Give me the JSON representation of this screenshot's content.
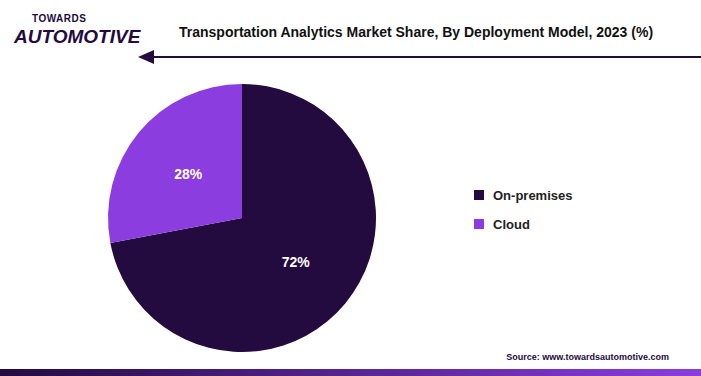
{
  "logo": {
    "top": "TOWARDS",
    "bottom": "AUTOMOTIVE"
  },
  "source": "Source: www.towardsautomotive.com",
  "chart_data": {
    "type": "pie",
    "title": "Transportation Analytics Market Share, By Deployment Model, 2023 (%)",
    "categories": [
      "On-premises",
      "Cloud"
    ],
    "values": [
      72,
      28
    ],
    "value_labels": [
      "72%",
      "28%"
    ],
    "colors": [
      "#230a3f",
      "#8b3de0"
    ],
    "data_labels": true,
    "legend": "right"
  }
}
